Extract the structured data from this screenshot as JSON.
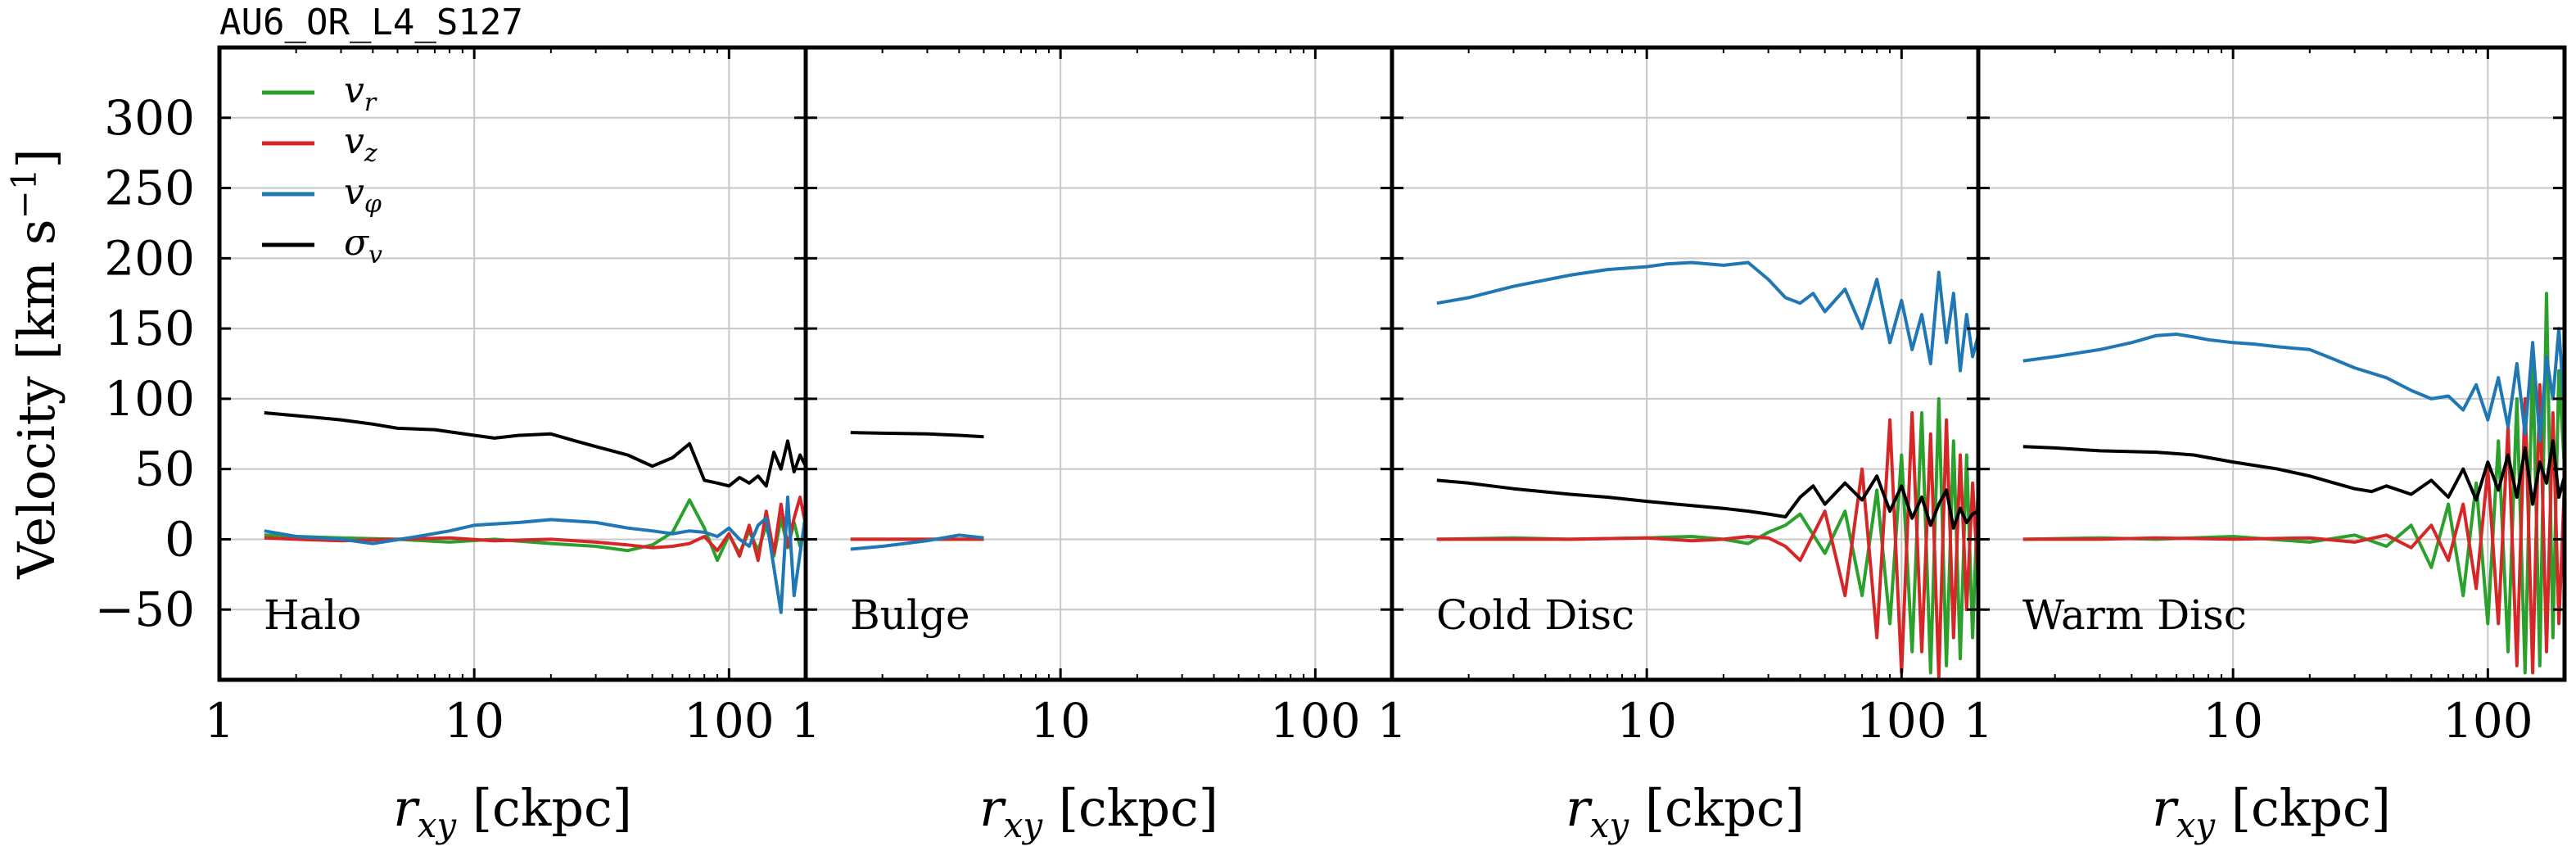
{
  "figure_title": "AU6_OR_L4_S127",
  "chart_data": [
    {
      "type": "line",
      "panel": "Halo",
      "xscale": "log",
      "xlim": [
        1,
        200
      ],
      "ylim": [
        -100,
        350
      ],
      "xticks": [
        1,
        10,
        100
      ],
      "yticks": [
        -50,
        0,
        50,
        100,
        150,
        200,
        250,
        300
      ],
      "xlabel": "r_xy [ckpc]",
      "ylabel": "Velocity [km s^-1]",
      "grid": true,
      "legend": "top-left",
      "series": [
        {
          "name": "v_r",
          "color": "#2ca02c",
          "x": [
            1.5,
            2,
            3,
            5,
            8,
            12,
            20,
            30,
            40,
            50,
            60,
            70,
            80,
            90,
            100,
            110,
            120,
            130,
            140,
            150,
            160,
            170,
            180,
            190,
            200
          ],
          "y": [
            3,
            2,
            1,
            0,
            -2,
            0,
            -3,
            -5,
            -8,
            -4,
            5,
            28,
            8,
            -15,
            3,
            -10,
            6,
            -8,
            10,
            -12,
            15,
            -6,
            12,
            -5,
            8
          ]
        },
        {
          "name": "v_z",
          "color": "#d62728",
          "x": [
            1.5,
            2,
            3,
            5,
            8,
            12,
            20,
            30,
            40,
            50,
            60,
            70,
            80,
            90,
            100,
            110,
            120,
            130,
            140,
            150,
            160,
            170,
            180,
            190,
            200
          ],
          "y": [
            1,
            0,
            -1,
            0,
            1,
            -1,
            0,
            -2,
            -4,
            -6,
            -5,
            -3,
            2,
            -8,
            4,
            -12,
            10,
            -15,
            20,
            -10,
            25,
            -5,
            15,
            30,
            10
          ]
        },
        {
          "name": "v_phi",
          "color": "#1f77b4",
          "x": [
            1.5,
            2,
            3,
            4,
            6,
            8,
            10,
            15,
            20,
            30,
            40,
            50,
            60,
            70,
            80,
            90,
            100,
            110,
            120,
            130,
            140,
            150,
            160,
            170,
            180,
            190,
            200
          ],
          "y": [
            6,
            2,
            0,
            -3,
            2,
            6,
            10,
            12,
            14,
            12,
            8,
            6,
            4,
            6,
            5,
            2,
            8,
            0,
            -5,
            10,
            15,
            -20,
            -52,
            30,
            -40,
            -10,
            18
          ]
        },
        {
          "name": "sigma_v",
          "color": "#000000",
          "x": [
            1.5,
            2,
            3,
            4,
            5,
            7,
            10,
            12,
            15,
            20,
            25,
            30,
            40,
            50,
            60,
            70,
            80,
            90,
            100,
            110,
            120,
            130,
            140,
            150,
            160,
            170,
            180,
            190,
            200
          ],
          "y": [
            90,
            88,
            85,
            82,
            79,
            78,
            74,
            72,
            74,
            75,
            70,
            66,
            60,
            52,
            58,
            68,
            42,
            40,
            38,
            44,
            40,
            45,
            38,
            62,
            50,
            70,
            48,
            60,
            52
          ]
        }
      ]
    },
    {
      "type": "line",
      "panel": "Bulge",
      "xscale": "log",
      "xlim": [
        1,
        200
      ],
      "ylim": [
        -100,
        350
      ],
      "xticks": [
        1,
        10,
        100
      ],
      "xlabel": "r_xy [ckpc]",
      "grid": true,
      "series": [
        {
          "name": "v_r",
          "color": "#2ca02c",
          "x": [
            1.5,
            2,
            3,
            4,
            5
          ],
          "y": [
            0,
            0,
            0,
            0,
            0
          ]
        },
        {
          "name": "v_z",
          "color": "#d62728",
          "x": [
            1.5,
            2,
            3,
            4,
            5
          ],
          "y": [
            0,
            0,
            0,
            0,
            0
          ]
        },
        {
          "name": "v_phi",
          "color": "#1f77b4",
          "x": [
            1.5,
            2,
            3,
            4,
            5
          ],
          "y": [
            -7,
            -5,
            -1,
            3,
            1
          ]
        },
        {
          "name": "sigma_v",
          "color": "#000000",
          "x": [
            1.5,
            2,
            3,
            4,
            5
          ],
          "y": [
            76,
            75.5,
            75,
            74,
            73
          ]
        }
      ]
    },
    {
      "type": "line",
      "panel": "Cold Disc",
      "xscale": "log",
      "xlim": [
        1,
        200
      ],
      "ylim": [
        -100,
        350
      ],
      "xticks": [
        1,
        10,
        100
      ],
      "xlabel": "r_xy [ckpc]",
      "grid": true,
      "series": [
        {
          "name": "v_r",
          "color": "#2ca02c",
          "x": [
            1.5,
            3,
            5,
            10,
            15,
            20,
            25,
            30,
            35,
            40,
            50,
            60,
            70,
            80,
            90,
            100,
            110,
            120,
            130,
            140,
            150,
            160,
            170,
            180,
            190,
            200
          ],
          "y": [
            0,
            1,
            0,
            1,
            2,
            0,
            -3,
            5,
            10,
            18,
            -10,
            20,
            -40,
            35,
            -60,
            60,
            -80,
            90,
            -95,
            100,
            -90,
            70,
            -85,
            60,
            -70,
            40
          ]
        },
        {
          "name": "v_z",
          "color": "#d62728",
          "x": [
            1.5,
            3,
            5,
            10,
            15,
            20,
            25,
            30,
            35,
            40,
            50,
            60,
            70,
            80,
            90,
            100,
            110,
            120,
            130,
            140,
            150,
            160,
            170,
            180,
            190,
            200
          ],
          "y": [
            0,
            0,
            0,
            1,
            -1,
            0,
            2,
            1,
            -5,
            -15,
            20,
            -40,
            50,
            -70,
            85,
            -95,
            90,
            -80,
            75,
            -98,
            85,
            -70,
            60,
            -50,
            40,
            -30
          ]
        },
        {
          "name": "v_phi",
          "color": "#1f77b4",
          "x": [
            1.5,
            2,
            3,
            5,
            7,
            10,
            12,
            15,
            20,
            25,
            30,
            35,
            40,
            45,
            50,
            60,
            70,
            80,
            90,
            100,
            110,
            120,
            130,
            140,
            150,
            160,
            170,
            180,
            190,
            200
          ],
          "y": [
            168,
            172,
            180,
            188,
            192,
            194,
            196,
            197,
            195,
            197,
            185,
            172,
            168,
            175,
            162,
            178,
            150,
            185,
            140,
            170,
            135,
            160,
            125,
            190,
            140,
            175,
            120,
            160,
            130,
            145
          ]
        },
        {
          "name": "sigma_v",
          "color": "#000000",
          "x": [
            1.5,
            2,
            3,
            5,
            7,
            10,
            15,
            20,
            25,
            30,
            35,
            40,
            45,
            50,
            60,
            70,
            80,
            90,
            100,
            110,
            120,
            130,
            140,
            150,
            160,
            170,
            180,
            190,
            200
          ],
          "y": [
            42,
            40,
            36,
            32,
            30,
            27,
            24,
            22,
            20,
            18,
            16,
            30,
            38,
            25,
            40,
            28,
            45,
            20,
            38,
            15,
            30,
            10,
            25,
            35,
            8,
            22,
            12,
            18,
            20
          ]
        }
      ]
    },
    {
      "type": "line",
      "panel": "Warm Disc",
      "xscale": "log",
      "xlim": [
        1,
        200
      ],
      "ylim": [
        -100,
        350
      ],
      "xticks": [
        1,
        10,
        100
      ],
      "xlabel": "r_xy [ckpc]",
      "grid": true,
      "series": [
        {
          "name": "v_r",
          "color": "#2ca02c",
          "x": [
            1.5,
            3,
            5,
            10,
            20,
            30,
            40,
            50,
            60,
            70,
            80,
            90,
            100,
            110,
            120,
            130,
            140,
            150,
            160,
            170,
            180,
            190,
            200
          ],
          "y": [
            0,
            1,
            0,
            2,
            -2,
            3,
            -5,
            10,
            -20,
            25,
            -40,
            40,
            -60,
            70,
            -80,
            100,
            -95,
            130,
            -90,
            175,
            -70,
            120,
            50
          ]
        },
        {
          "name": "v_z",
          "color": "#d62728",
          "x": [
            1.5,
            3,
            5,
            10,
            20,
            30,
            40,
            50,
            60,
            70,
            80,
            90,
            100,
            110,
            120,
            130,
            140,
            150,
            160,
            170,
            180,
            190,
            200
          ],
          "y": [
            0,
            0,
            1,
            0,
            1,
            -2,
            3,
            -6,
            10,
            -15,
            25,
            -35,
            50,
            -60,
            80,
            -90,
            100,
            -95,
            110,
            -80,
            90,
            -60,
            40
          ]
        },
        {
          "name": "v_phi",
          "color": "#1f77b4",
          "x": [
            1.5,
            2,
            3,
            4,
            5,
            6,
            7,
            8,
            10,
            12,
            15,
            20,
            25,
            30,
            40,
            50,
            60,
            70,
            80,
            90,
            100,
            110,
            120,
            130,
            140,
            150,
            160,
            170,
            180,
            190,
            200
          ],
          "y": [
            127,
            130,
            135,
            140,
            145,
            146,
            144,
            142,
            140,
            139,
            137,
            135,
            128,
            122,
            115,
            106,
            100,
            102,
            92,
            110,
            85,
            115,
            80,
            125,
            75,
            140,
            70,
            130,
            100,
            150,
            90
          ]
        },
        {
          "name": "sigma_v",
          "color": "#000000",
          "x": [
            1.5,
            2,
            3,
            5,
            7,
            10,
            15,
            20,
            25,
            30,
            35,
            40,
            50,
            60,
            70,
            80,
            90,
            100,
            110,
            120,
            130,
            140,
            150,
            160,
            170,
            180,
            190,
            200
          ],
          "y": [
            66,
            65,
            63,
            62,
            60,
            55,
            50,
            45,
            40,
            36,
            34,
            38,
            32,
            42,
            30,
            50,
            28,
            55,
            35,
            60,
            30,
            65,
            25,
            55,
            40,
            70,
            30,
            45
          ]
        }
      ]
    }
  ],
  "legend": [
    {
      "label_base": "v",
      "label_sub": "r",
      "color": "#2ca02c"
    },
    {
      "label_base": "v",
      "label_sub": "z",
      "color": "#d62728"
    },
    {
      "label_base": "v",
      "label_sub": "φ",
      "color": "#1f77b4"
    },
    {
      "label_base": "σ",
      "label_sub": "v",
      "color": "#000000"
    }
  ],
  "panel_labels": [
    "Halo",
    "Bulge",
    "Cold Disc",
    "Warm Disc"
  ],
  "x_axis_label": {
    "var": "r",
    "sub": "xy",
    "unit": "[ckpc]"
  },
  "y_axis_label": {
    "text": "Velocity [km s",
    "sup": "−1",
    "close": "]"
  },
  "x_tick_labels": [
    "1",
    "10",
    "100"
  ],
  "x_last_tick_label": "1",
  "y_tick_labels": [
    "−50",
    "0",
    "50",
    "100",
    "150",
    "200",
    "250",
    "300"
  ]
}
